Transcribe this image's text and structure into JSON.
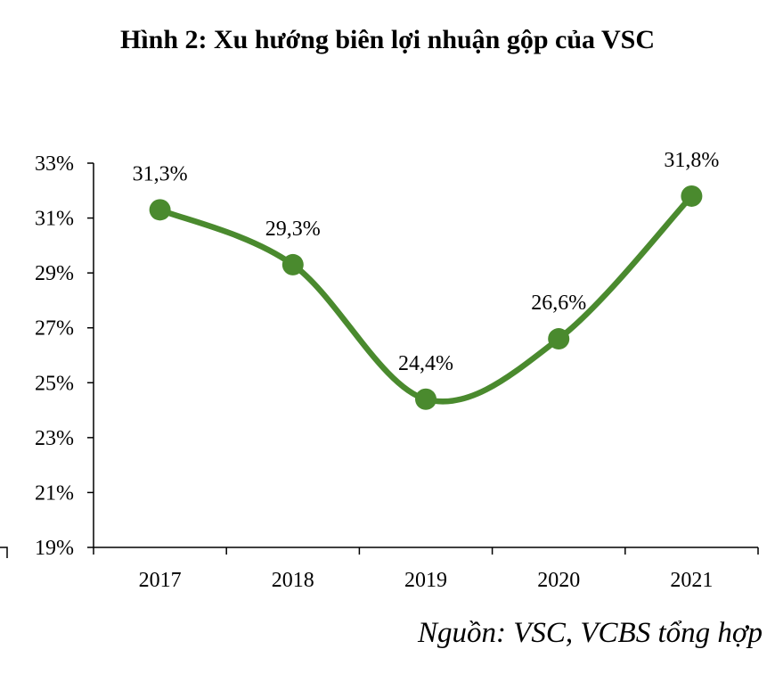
{
  "chart_data": {
    "type": "line",
    "title": "Hình 2: Xu hướng biên lợi nhuận gộp của VSC",
    "categories": [
      "2017",
      "2018",
      "2019",
      "2020",
      "2021"
    ],
    "series": [
      {
        "values": [
          31.3,
          29.3,
          24.4,
          26.6,
          31.8
        ],
        "labels": [
          "31,3%",
          "29,3%",
          "24,4%",
          "26,6%",
          "31,8%"
        ]
      }
    ],
    "y_ticks": [
      19,
      21,
      23,
      25,
      27,
      29,
      31,
      33
    ],
    "y_tick_labels": [
      "19%",
      "21%",
      "23%",
      "25%",
      "27%",
      "29%",
      "31%",
      "33%"
    ],
    "ylim": [
      19,
      33
    ],
    "grid": false,
    "smooth": true,
    "colors": {
      "line": "#4a8a2e",
      "axis": "#000000"
    },
    "source": "Nguồn: VSC, VCBS tổng hợp"
  }
}
